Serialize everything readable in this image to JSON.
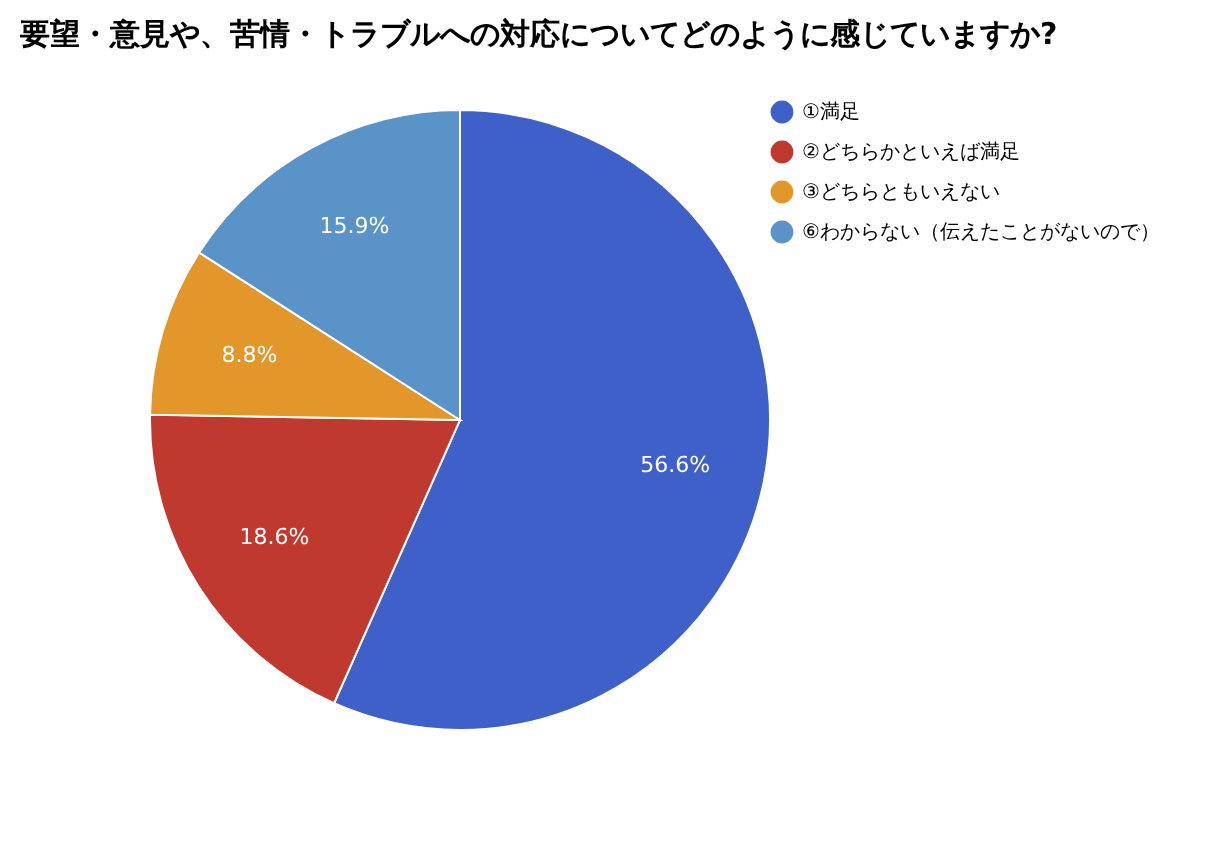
{
  "chart_data": {
    "type": "pie",
    "title": "要望・意見や、苦情・トラブルへの対応についてどのように感じていますか?",
    "categories": [
      "①満足",
      "②どちらかといえば満足",
      "③どちらともいえない",
      "⑥わからない（伝えたことがないので）"
    ],
    "values": [
      56.6,
      18.6,
      8.8,
      15.9
    ],
    "colors": [
      "#3f5fc9",
      "#c0392e",
      "#e3962a",
      "#5a93c8"
    ],
    "value_labels": [
      "56.6%",
      "18.6%",
      "8.8%",
      "15.9%"
    ],
    "legend": "top right"
  }
}
